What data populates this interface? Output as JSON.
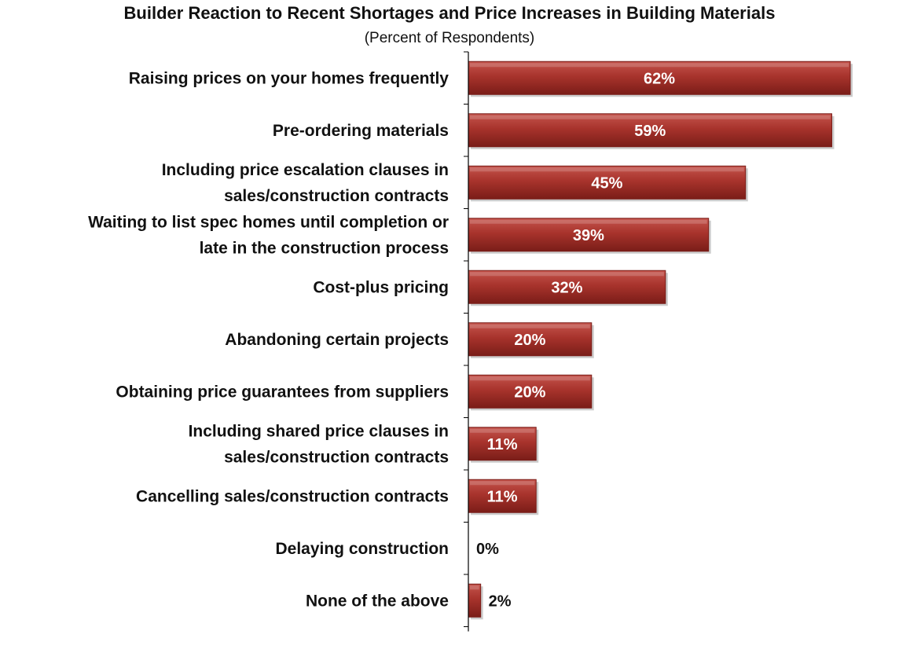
{
  "chart_data": {
    "type": "bar",
    "orientation": "horizontal",
    "title": "Builder Reaction to Recent Shortages and Price Increases in Building Materials",
    "subtitle": "(Percent of Respondents)",
    "categories": [
      [
        "Raising prices on your homes frequently"
      ],
      [
        "Pre-ordering materials"
      ],
      [
        "Including price escalation clauses in",
        "sales/construction contracts"
      ],
      [
        "Waiting to list spec homes until completion or",
        "late in the construction process"
      ],
      [
        "Cost-plus pricing"
      ],
      [
        "Abandoning certain projects"
      ],
      [
        "Obtaining price guarantees from suppliers"
      ],
      [
        "Including shared price clauses in",
        "sales/construction contracts"
      ],
      [
        "Cancelling sales/construction contracts"
      ],
      [
        "Delaying construction"
      ],
      [
        "None of the above"
      ]
    ],
    "values": [
      62,
      59,
      45,
      39,
      32,
      20,
      20,
      11,
      11,
      0,
      2
    ],
    "value_labels": [
      "62%",
      "59%",
      "45%",
      "39%",
      "32%",
      "20%",
      "20%",
      "11%",
      "11%",
      "0%",
      "2%"
    ],
    "xlim": [
      0,
      62
    ],
    "grid": false,
    "legend": "none",
    "colors": {
      "bar": "#a8332c",
      "bar_top": "#c4544c",
      "bar_edge": "#7a1d18"
    }
  }
}
